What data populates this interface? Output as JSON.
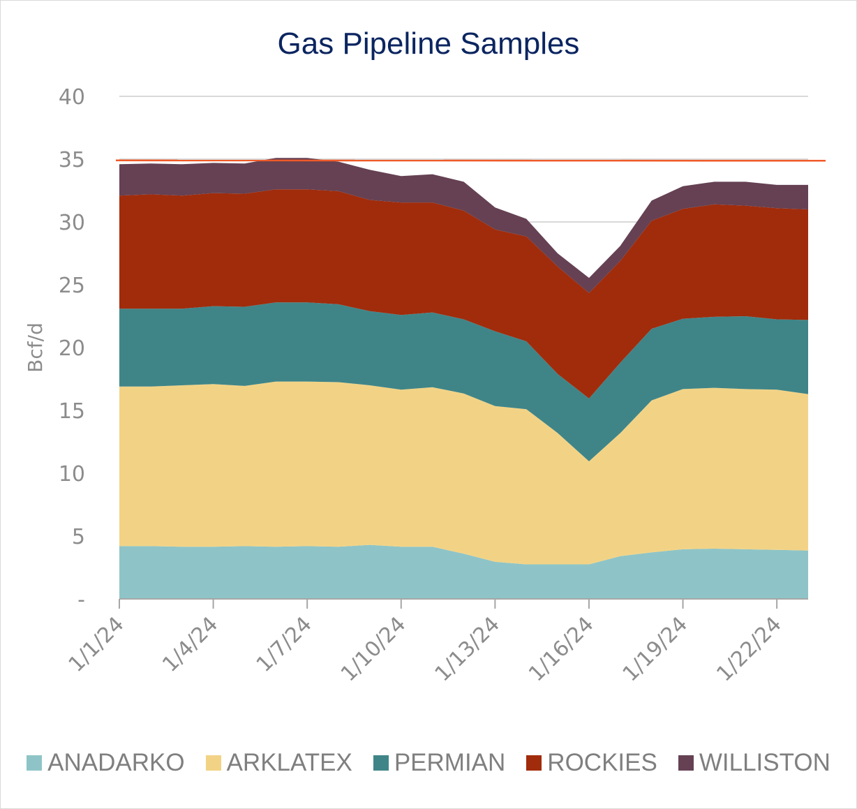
{
  "chart_data": {
    "type": "area",
    "stacked": true,
    "title": "Gas Pipeline Samples",
    "ylabel": "Bcf/d",
    "xlabel": "",
    "ylim": [
      0,
      40
    ],
    "yticks": [
      0,
      5,
      10,
      15,
      20,
      25,
      30,
      35,
      40
    ],
    "ytick_labels": [
      "-",
      "5",
      "10",
      "15",
      "20",
      "25",
      "30",
      "35",
      "40"
    ],
    "x": [
      "1/1/24",
      "1/2/24",
      "1/3/24",
      "1/4/24",
      "1/5/24",
      "1/6/24",
      "1/7/24",
      "1/8/24",
      "1/9/24",
      "1/10/24",
      "1/11/24",
      "1/12/24",
      "1/13/24",
      "1/14/24",
      "1/15/24",
      "1/16/24",
      "1/17/24",
      "1/18/24",
      "1/19/24",
      "1/20/24",
      "1/21/24",
      "1/22/24",
      "1/23/24"
    ],
    "xtick_labels": [
      "1/1/24",
      "1/4/24",
      "1/7/24",
      "1/10/24",
      "1/13/24",
      "1/16/24",
      "1/19/24",
      "1/22/24"
    ],
    "grid": true,
    "legend_position": "bottom",
    "series": [
      {
        "name": "ANADARKO",
        "color": "#8ec4c7",
        "values": [
          4.2,
          4.2,
          4.15,
          4.15,
          4.2,
          4.15,
          4.2,
          4.15,
          4.3,
          4.15,
          4.15,
          3.6,
          2.95,
          2.75,
          2.75,
          2.75,
          3.4,
          3.7,
          3.95,
          4.0,
          3.95,
          3.9,
          3.85
        ]
      },
      {
        "name": "ARKLATEX",
        "color": "#f2d386",
        "values": [
          12.7,
          12.7,
          12.85,
          12.95,
          12.75,
          13.15,
          13.1,
          13.1,
          12.7,
          12.5,
          12.7,
          12.75,
          12.4,
          12.35,
          10.45,
          8.2,
          9.8,
          12.1,
          12.75,
          12.8,
          12.75,
          12.75,
          12.45
        ]
      },
      {
        "name": "PERMIAN",
        "color": "#3f8588",
        "values": [
          6.2,
          6.2,
          6.1,
          6.2,
          6.3,
          6.3,
          6.3,
          6.2,
          5.9,
          5.95,
          5.95,
          5.9,
          5.95,
          5.4,
          4.7,
          5.0,
          5.6,
          5.7,
          5.6,
          5.65,
          5.8,
          5.6,
          5.9
        ]
      },
      {
        "name": "ROCKIES",
        "color": "#a02c0c",
        "values": [
          9.0,
          9.1,
          9.0,
          9.0,
          9.0,
          9.0,
          9.0,
          9.0,
          8.85,
          8.95,
          8.75,
          8.65,
          8.1,
          8.35,
          8.55,
          8.4,
          8.1,
          8.6,
          8.75,
          8.95,
          8.8,
          8.85,
          8.8
        ]
      },
      {
        "name": "WILLISTON",
        "color": "#654153",
        "values": [
          2.5,
          2.45,
          2.5,
          2.4,
          2.4,
          2.5,
          2.5,
          2.35,
          2.4,
          2.1,
          2.25,
          2.3,
          1.75,
          1.4,
          1.05,
          1.2,
          1.2,
          1.6,
          1.8,
          1.8,
          1.9,
          1.85,
          1.95
        ]
      }
    ],
    "reference_line": {
      "y": 34.9,
      "color": "#f05a28"
    }
  }
}
